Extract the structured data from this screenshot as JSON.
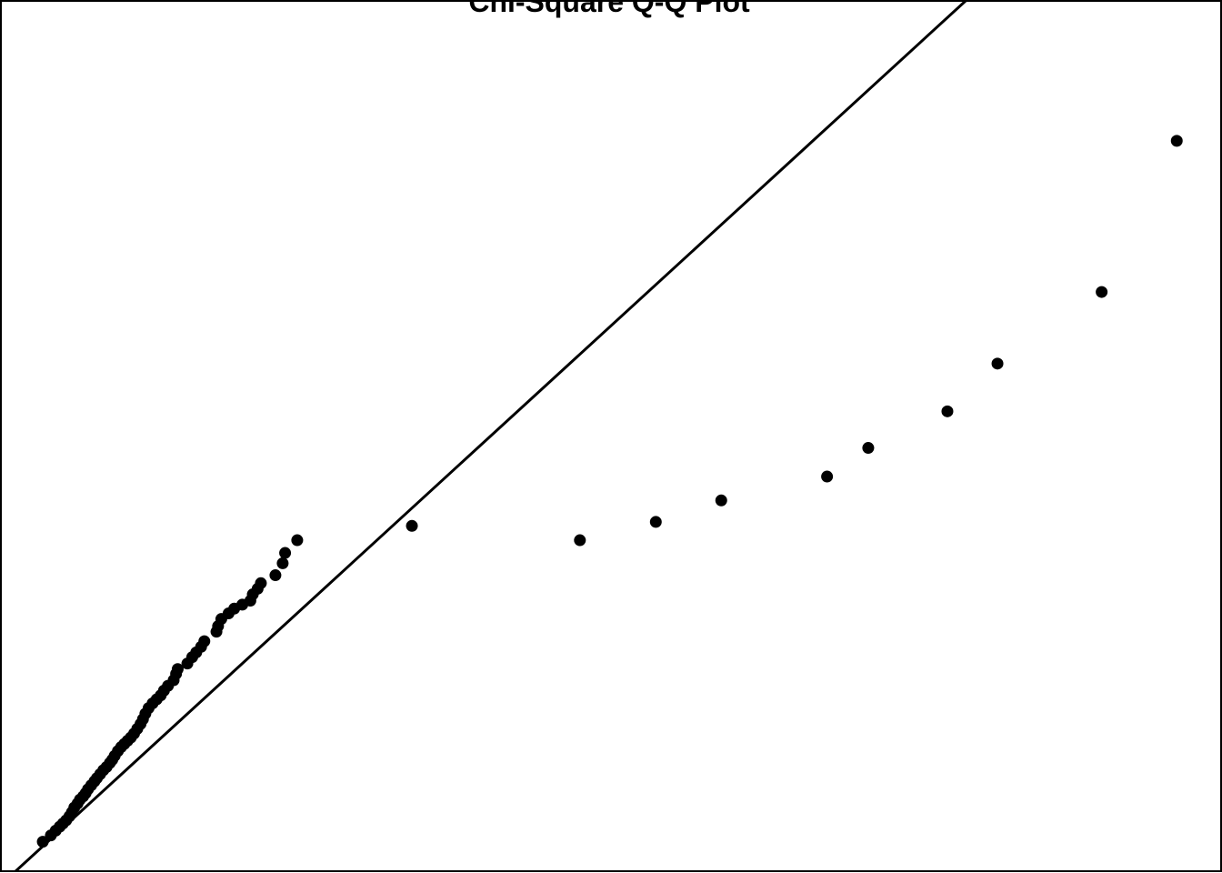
{
  "chart_data": {
    "type": "scatter",
    "title": "Chi-Square Q-Q Plot",
    "xlabel": "",
    "ylabel": "",
    "xlim": [
      0,
      15.13
    ],
    "ylim": [
      0,
      10.95
    ],
    "grid": false,
    "legend": "none",
    "colors": {
      "points": "#000000",
      "line": "#000000",
      "frame": "#000000"
    },
    "reference_line": {
      "intercept": -0.18,
      "slope": 0.93
    },
    "points": {
      "x": [
        0.53,
        0.63,
        0.69,
        0.74,
        0.78,
        0.82,
        0.86,
        0.89,
        0.92,
        0.96,
        0.99,
        1.03,
        1.06,
        1.09,
        1.13,
        1.17,
        1.2,
        1.24,
        1.28,
        1.32,
        1.36,
        1.39,
        1.42,
        1.46,
        1.5,
        1.54,
        1.58,
        1.62,
        1.66,
        1.7,
        1.74,
        1.77,
        1.8,
        1.84,
        1.89,
        1.94,
        1.99,
        2.03,
        2.08,
        2.15,
        2.18,
        2.2,
        2.32,
        2.38,
        2.43,
        2.49,
        2.53,
        2.68,
        2.7,
        2.74,
        2.83,
        2.9,
        3.0,
        3.1,
        3.13,
        3.19,
        3.23,
        3.41,
        3.5,
        3.53,
        3.68,
        5.1,
        7.18,
        8.12,
        8.93,
        10.24,
        10.75,
        11.73,
        12.35,
        13.64,
        14.57
      ],
      "y": [
        0.37,
        0.45,
        0.51,
        0.56,
        0.6,
        0.64,
        0.69,
        0.74,
        0.8,
        0.85,
        0.9,
        0.94,
        0.98,
        1.03,
        1.08,
        1.13,
        1.17,
        1.22,
        1.27,
        1.31,
        1.36,
        1.4,
        1.45,
        1.51,
        1.56,
        1.6,
        1.64,
        1.68,
        1.73,
        1.79,
        1.85,
        1.91,
        1.98,
        2.05,
        2.11,
        2.16,
        2.21,
        2.27,
        2.33,
        2.4,
        2.48,
        2.54,
        2.61,
        2.69,
        2.75,
        2.82,
        2.89,
        3.01,
        3.08,
        3.17,
        3.24,
        3.3,
        3.35,
        3.4,
        3.48,
        3.55,
        3.62,
        3.72,
        3.87,
        4.0,
        4.16,
        4.34,
        4.16,
        4.39,
        4.66,
        4.96,
        5.32,
        5.78,
        6.38,
        7.28,
        9.18
      ]
    }
  }
}
